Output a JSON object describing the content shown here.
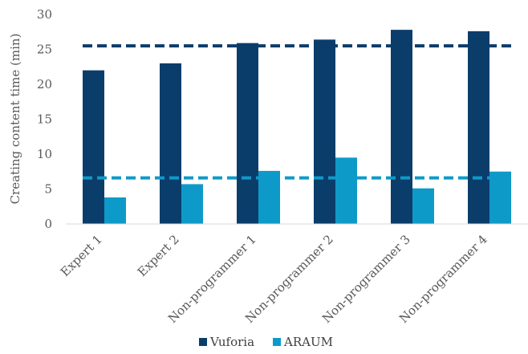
{
  "chart_data": {
    "type": "bar",
    "title": "",
    "xlabel": "",
    "ylabel": "Creating content time (min)",
    "ylim": [
      0,
      30
    ],
    "yticks": [
      0,
      5,
      10,
      15,
      20,
      25,
      30
    ],
    "categories": [
      "Expert 1",
      "Expert 2",
      "Non-programmer 1",
      "Non-programmer 2",
      "Non-programmer 3",
      "Non-programmer 4"
    ],
    "series": [
      {
        "name": "Vuforia",
        "color": "#0b3d6b",
        "values": [
          22.0,
          23.0,
          25.9,
          26.4,
          27.8,
          27.6
        ]
      },
      {
        "name": "ARAUM",
        "color": "#0e9ac9",
        "values": [
          3.8,
          5.7,
          7.6,
          9.5,
          5.1,
          7.5
        ]
      }
    ],
    "average_lines": [
      {
        "series": "Vuforia",
        "value": 25.5,
        "style": "dashed"
      },
      {
        "series": "ARAUM",
        "value": 6.6,
        "style": "dashed"
      }
    ],
    "grid": false,
    "legend": "bottom-center"
  }
}
